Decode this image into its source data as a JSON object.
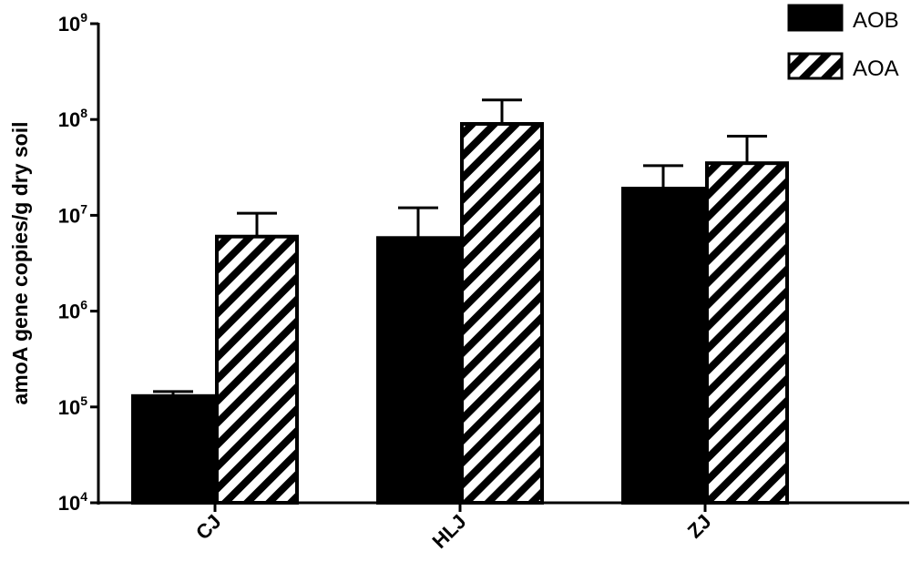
{
  "chart_data": {
    "type": "bar",
    "y_scale": "log10",
    "ylim": [
      10000,
      1000000000
    ],
    "y_ticks": [
      {
        "base": "10",
        "exp": "4",
        "value": 10000
      },
      {
        "base": "10",
        "exp": "5",
        "value": 100000
      },
      {
        "base": "10",
        "exp": "6",
        "value": 1000000
      },
      {
        "base": "10",
        "exp": "7",
        "value": 10000000
      },
      {
        "base": "10",
        "exp": "8",
        "value": 100000000
      },
      {
        "base": "10",
        "exp": "9",
        "value": 1000000000
      }
    ],
    "ylabel": "amoA gene copies/g dry soil",
    "xlabel": "",
    "categories": [
      "CJ",
      "HLJ",
      "ZJ"
    ],
    "series": [
      {
        "name": "AOB",
        "fill": "solid",
        "color": "#000000",
        "values": [
          130000,
          5800000,
          19000000
        ],
        "error_upper": [
          145000,
          12000000,
          33000000
        ]
      },
      {
        "name": "AOA",
        "fill": "hatched",
        "color": "#000000",
        "values": [
          6000000,
          90000000,
          35000000
        ],
        "error_upper": [
          10500000,
          160000000,
          67000000
        ]
      }
    ],
    "legend_position": "top-right",
    "grid": false
  }
}
